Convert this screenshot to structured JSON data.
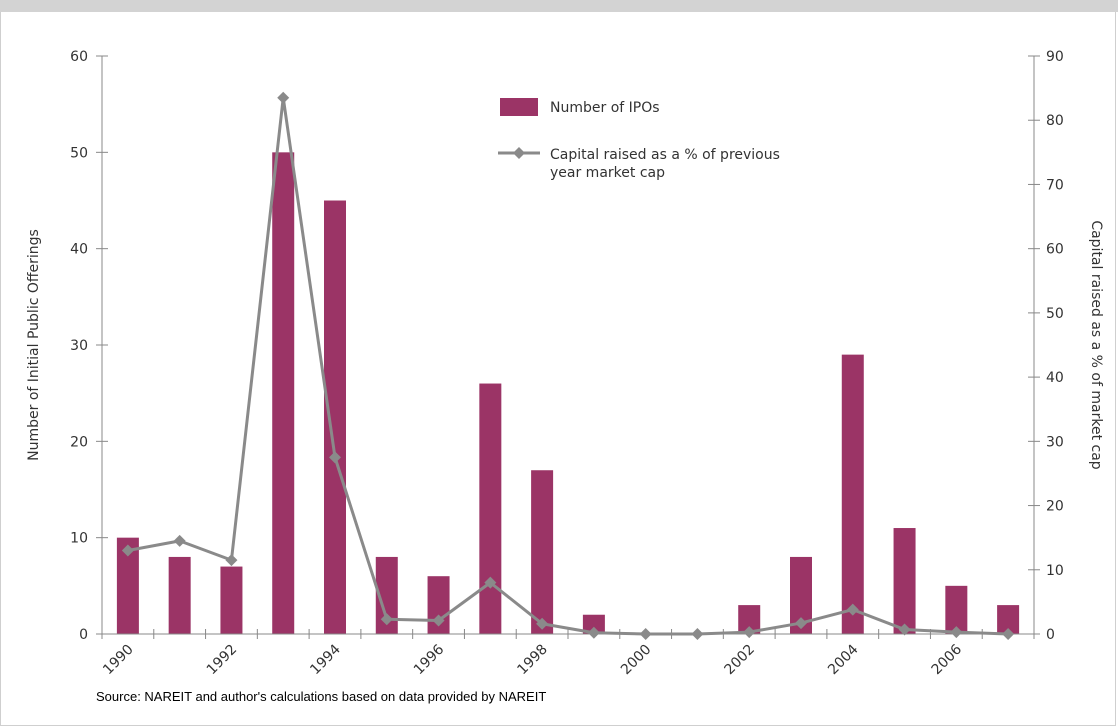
{
  "chart_data": {
    "type": "bar",
    "years": [
      1990,
      1991,
      1992,
      1993,
      1994,
      1995,
      1996,
      1997,
      1998,
      1999,
      2000,
      2001,
      2002,
      2003,
      2004,
      2005,
      2006,
      2007
    ],
    "x_tick_labels": [
      "1990",
      "1992",
      "1994",
      "1996",
      "1998",
      "2000",
      "2002",
      "2004",
      "2006"
    ],
    "series": [
      {
        "name": "Number of IPOs",
        "type": "bar",
        "axis": "left",
        "color": "#9b3466",
        "values": [
          10,
          8,
          7,
          50,
          45,
          8,
          6,
          26,
          17,
          2,
          0,
          0,
          3,
          8,
          29,
          11,
          5,
          3
        ]
      },
      {
        "name": "Capital raised as a % of previous year market cap",
        "name_lines": [
          "Capital raised as a % of previous",
          "year market cap"
        ],
        "type": "line",
        "axis": "right",
        "color": "#8a8a8a",
        "marker": "diamond",
        "values": [
          13,
          14.5,
          11.5,
          83.5,
          27.5,
          2.3,
          2.1,
          8,
          1.6,
          0.2,
          0,
          0,
          0.3,
          1.7,
          3.8,
          0.7,
          0.3,
          0
        ]
      }
    ],
    "ylabel_left": "Number of Initial Public Offerings",
    "ylabel_right": "Capital raised as a % of market cap",
    "ylim_left": [
      0,
      60
    ],
    "ylim_right": [
      0,
      90
    ],
    "yticks_left": [
      0,
      10,
      20,
      30,
      40,
      50,
      60
    ],
    "yticks_right": [
      0,
      10,
      20,
      30,
      40,
      50,
      60,
      70,
      80,
      90
    ],
    "grid": false,
    "legend_placement": "top-center"
  },
  "source_note": "Source: NAREIT and author's calculations based on data provided by NAREIT"
}
